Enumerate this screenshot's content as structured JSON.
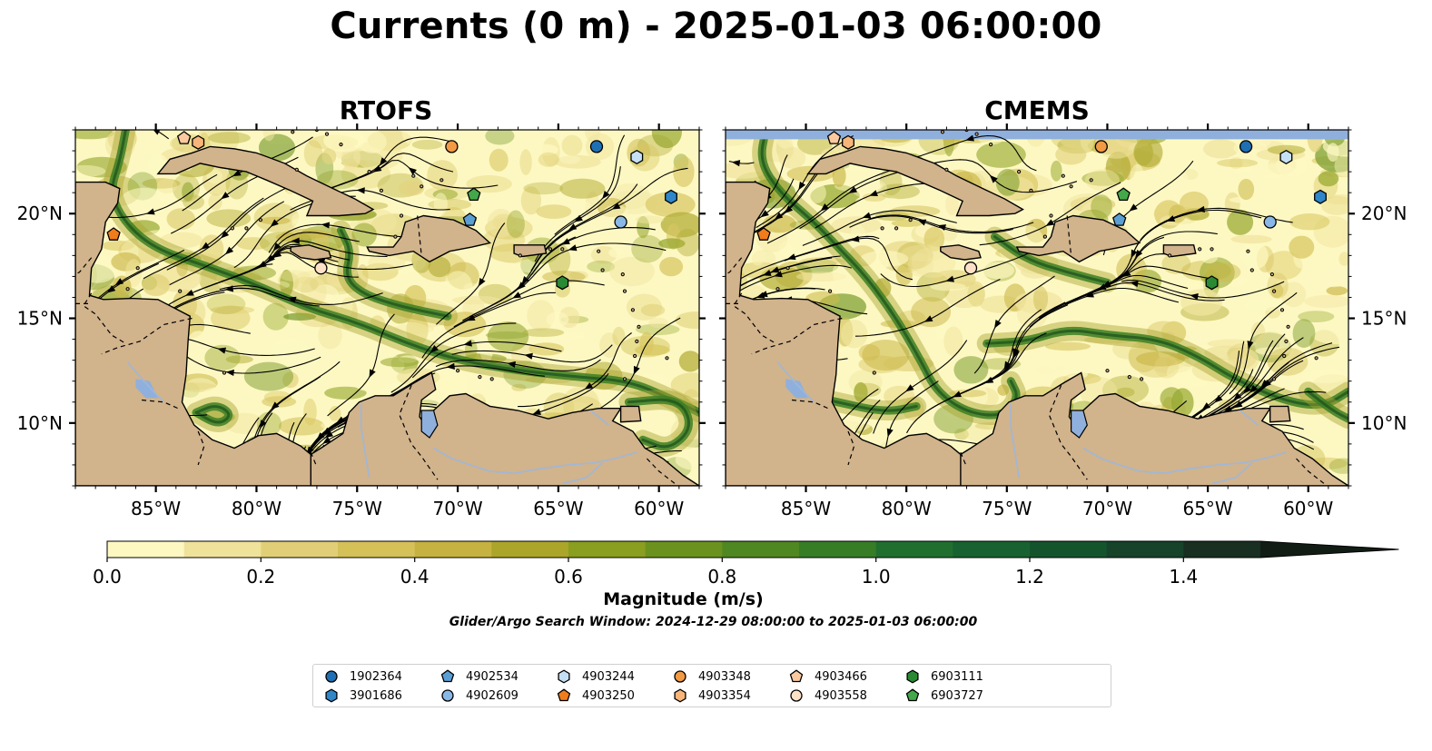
{
  "title": "Currents (0 m) - 2025-01-03 06:00:00",
  "panels": [
    {
      "title": "RTOFS"
    },
    {
      "title": "CMEMS"
    }
  ],
  "map_extent": {
    "lon": [
      -89,
      -58
    ],
    "lat": [
      7,
      24
    ]
  },
  "lon_ticks": [
    "85°W",
    "80°W",
    "75°W",
    "70°W",
    "65°W",
    "60°W"
  ],
  "lon_tick_values": [
    -85,
    -80,
    -75,
    -70,
    -65,
    -60
  ],
  "lat_ticks": [
    "20°N",
    "15°N",
    "10°N"
  ],
  "lat_tick_values": [
    20,
    15,
    10
  ],
  "colorbar": {
    "label": "Magnitude (m/s)",
    "range": [
      0.0,
      1.5
    ],
    "extend": "max",
    "tick_labels": [
      "0.0",
      "0.2",
      "0.4",
      "0.6",
      "0.8",
      "1.0",
      "1.2",
      "1.4"
    ],
    "tick_values": [
      0.0,
      0.2,
      0.4,
      0.6,
      0.8,
      1.0,
      1.2,
      1.4
    ],
    "colors": [
      "#fdf8c2",
      "#efe29b",
      "#e0cf76",
      "#d4c158",
      "#c6b240",
      "#aba52a",
      "#8a9e1f",
      "#6b921e",
      "#4f8722",
      "#367d26",
      "#206f2e",
      "#176230",
      "#14542d",
      "#16432a",
      "#182f21",
      "#111d14"
    ]
  },
  "search_window": "Glider/Argo Search Window: 2024-12-29 08:00:00 to 2025-01-03 06:00:00",
  "colors": {
    "land": "#d1b38c",
    "water_body": "#8fb0dc",
    "ocean_low": "#fdf8c2",
    "jet": "#3c7f22"
  },
  "platforms": [
    {
      "id": "1902364",
      "marker": "circle",
      "color": "#1f6fb4",
      "lon": -63.1,
      "lat": 23.2
    },
    {
      "id": "3901686",
      "marker": "hexagon",
      "color": "#2f86c8",
      "lon": -59.4,
      "lat": 20.8
    },
    {
      "id": "4902534",
      "marker": "pentagon",
      "color": "#5a9fd4",
      "lon": -69.4,
      "lat": 19.7
    },
    {
      "id": "4902609",
      "marker": "circle",
      "color": "#8ab8e6",
      "lon": -61.9,
      "lat": 19.6
    },
    {
      "id": "4903244",
      "marker": "hexagon",
      "color": "#c5e0f4",
      "lon": -61.1,
      "lat": 22.7
    },
    {
      "id": "4903250",
      "marker": "pentagon",
      "color": "#f07d1b",
      "lon": -87.1,
      "lat": 19.0
    },
    {
      "id": "4903348",
      "marker": "circle",
      "color": "#f39a45",
      "lon": -70.3,
      "lat": 23.2
    },
    {
      "id": "4903354",
      "marker": "hexagon",
      "color": "#f8b57a",
      "lon": -82.9,
      "lat": 23.4
    },
    {
      "id": "4903466",
      "marker": "pentagon",
      "color": "#fac9a0",
      "lon": -83.6,
      "lat": 23.6
    },
    {
      "id": "4903558",
      "marker": "circle",
      "color": "#fde1c7",
      "lon": -76.8,
      "lat": 17.4
    },
    {
      "id": "6903111",
      "marker": "hexagon",
      "color": "#2a8a34",
      "lon": -64.8,
      "lat": 16.7
    },
    {
      "id": "6903727",
      "marker": "pentagon",
      "color": "#44a84a",
      "lon": -69.2,
      "lat": 20.9
    }
  ]
}
